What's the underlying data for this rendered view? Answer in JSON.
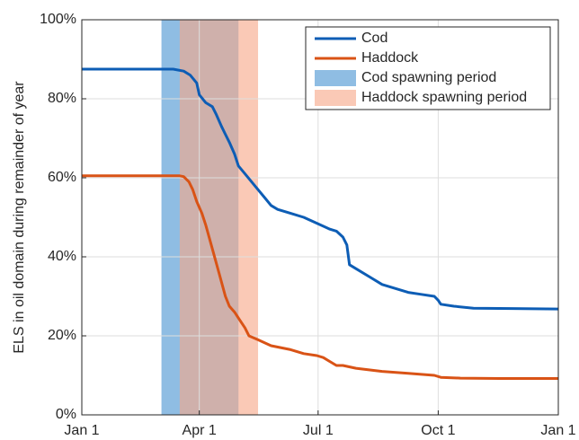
{
  "chart_data": {
    "type": "line",
    "ylabel": "ELS in oil domain during remainder of year",
    "xlim": [
      0,
      365
    ],
    "xticks": [
      {
        "value": 0,
        "label": "Jan 1"
      },
      {
        "value": 90,
        "label": "Apr 1"
      },
      {
        "value": 181,
        "label": "Jul 1"
      },
      {
        "value": 273,
        "label": "Oct 1"
      },
      {
        "value": 365,
        "label": "Jan 1"
      }
    ],
    "ylim": [
      0,
      100
    ],
    "yticks": [
      {
        "value": 0,
        "label": "0%"
      },
      {
        "value": 20,
        "label": "20%"
      },
      {
        "value": 40,
        "label": "40%"
      },
      {
        "value": 60,
        "label": "60%"
      },
      {
        "value": 80,
        "label": "80%"
      },
      {
        "value": 100,
        "label": "100%"
      }
    ],
    "grid": true,
    "legend": "upper right",
    "spans": [
      {
        "name": "Cod spawning period",
        "color": "#8fbde3",
        "x": [
          61,
          120
        ]
      },
      {
        "name": "Haddock spawning period",
        "color": "#f7a889",
        "x": [
          75,
          135
        ]
      }
    ],
    "series": [
      {
        "name": "Cod",
        "color": "#0d5db5",
        "x": [
          0,
          70,
          78,
          83,
          88,
          90,
          95,
          100,
          103,
          107,
          110,
          113,
          117,
          120,
          125,
          130,
          135,
          140,
          145,
          150,
          160,
          170,
          180,
          190,
          195,
          200,
          203,
          205,
          210,
          220,
          230,
          240,
          250,
          260,
          270,
          273,
          275,
          285,
          300,
          330,
          365
        ],
        "values": [
          87.5,
          87.5,
          87,
          86,
          84,
          81,
          79,
          78,
          76,
          73,
          71,
          69,
          66,
          63,
          61,
          59,
          57,
          55,
          53,
          52,
          51,
          50,
          48.5,
          47,
          46.5,
          45,
          43,
          38,
          37,
          35,
          33,
          32,
          31,
          30.5,
          30,
          29,
          28,
          27.5,
          27,
          26.9,
          26.8
        ]
      },
      {
        "name": "Haddock",
        "color": "#d95316",
        "x": [
          0,
          75,
          78,
          82,
          85,
          88,
          92,
          95,
          100,
          105,
          110,
          113,
          117,
          120,
          125,
          128,
          135,
          145,
          160,
          170,
          180,
          185,
          190,
          195,
          200,
          210,
          230,
          250,
          270,
          275,
          290,
          320,
          365
        ],
        "values": [
          60.5,
          60.5,
          60.3,
          59,
          57,
          54,
          51,
          48,
          42,
          36,
          30,
          27.5,
          26,
          24.5,
          22,
          20,
          19,
          17.5,
          16.5,
          15.5,
          15,
          14.5,
          13.5,
          12.5,
          12.5,
          11.8,
          11,
          10.5,
          10,
          9.5,
          9.3,
          9.2,
          9.2
        ]
      }
    ]
  }
}
